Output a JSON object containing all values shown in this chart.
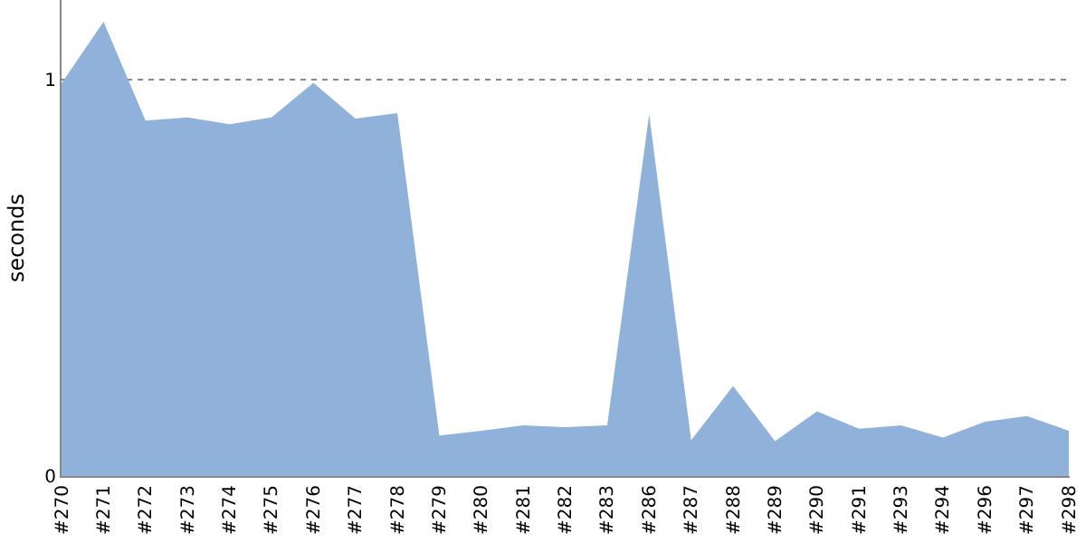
{
  "chart_data": {
    "type": "area",
    "ylabel": "seconds",
    "categories": [
      "#270",
      "#271",
      "#272",
      "#273",
      "#274",
      "#275",
      "#276",
      "#277",
      "#278",
      "#279",
      "#280",
      "#281",
      "#282",
      "#283",
      "#286",
      "#287",
      "#288",
      "#289",
      "#290",
      "#291",
      "#293",
      "#294",
      "#296",
      "#297",
      "#298"
    ],
    "series": [
      {
        "color": "#8fb1da",
        "values": [
          0.99,
          1.145,
          0.896,
          0.904,
          0.887,
          0.904,
          0.991,
          0.901,
          0.915,
          0.102,
          0.114,
          0.128,
          0.123,
          0.128,
          0.912,
          0.09,
          0.227,
          0.088,
          0.163,
          0.119,
          0.128,
          0.097,
          0.137,
          0.151,
          0.114
        ]
      }
    ],
    "ylim": [
      0,
      1.2
    ],
    "yticks": [
      0,
      1
    ],
    "grid": "y"
  }
}
